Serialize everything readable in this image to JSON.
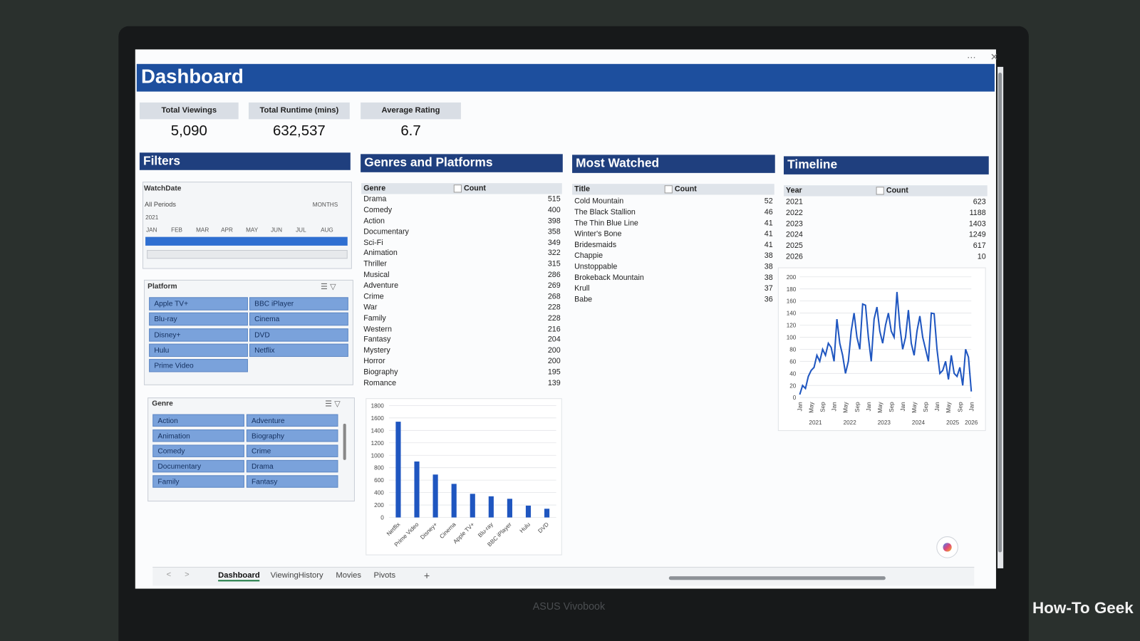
{
  "header": {
    "title": "Dashboard"
  },
  "kpis": [
    {
      "label": "Total Viewings",
      "value": "5,090"
    },
    {
      "label": "Total Runtime (mins)",
      "value": "632,537"
    },
    {
      "label": "Average Rating",
      "value": "6.7"
    }
  ],
  "filters": {
    "title": "Filters",
    "watchdate": {
      "title": "WatchDate",
      "period": "All Periods",
      "level": "MONTHS",
      "year": "2021",
      "months": [
        "JAN",
        "FEB",
        "MAR",
        "APR",
        "MAY",
        "JUN",
        "JUL",
        "AUG"
      ]
    },
    "platform": {
      "title": "Platform",
      "items": [
        "Apple TV+",
        "BBC iPlayer",
        "Blu-ray",
        "Cinema",
        "Disney+",
        "DVD",
        "Hulu",
        "Netflix",
        "Prime Video"
      ]
    },
    "genre": {
      "title": "Genre",
      "items": [
        "Action",
        "Adventure",
        "Animation",
        "Biography",
        "Comedy",
        "Crime",
        "Documentary",
        "Drama",
        "Family",
        "Fantasy"
      ]
    }
  },
  "genres": {
    "title": "Genres and Platforms",
    "columns": [
      "Genre",
      "Count"
    ],
    "rows": [
      [
        "Drama",
        515
      ],
      [
        "Comedy",
        400
      ],
      [
        "Action",
        398
      ],
      [
        "Documentary",
        358
      ],
      [
        "Sci-Fi",
        349
      ],
      [
        "Animation",
        322
      ],
      [
        "Thriller",
        315
      ],
      [
        "Musical",
        286
      ],
      [
        "Adventure",
        269
      ],
      [
        "Crime",
        268
      ],
      [
        "War",
        228
      ],
      [
        "Family",
        228
      ],
      [
        "Western",
        216
      ],
      [
        "Fantasy",
        204
      ],
      [
        "Mystery",
        200
      ],
      [
        "Horror",
        200
      ],
      [
        "Biography",
        195
      ],
      [
        "Romance",
        139
      ]
    ]
  },
  "most_watched": {
    "title": "Most Watched",
    "columns": [
      "Title",
      "Count"
    ],
    "rows": [
      [
        "Cold Mountain",
        52
      ],
      [
        "The Black Stallion",
        46
      ],
      [
        "The Thin Blue Line",
        41
      ],
      [
        "Winter's Bone",
        41
      ],
      [
        "Bridesmaids",
        41
      ],
      [
        "Chappie",
        38
      ],
      [
        "Unstoppable",
        38
      ],
      [
        "Brokeback Mountain",
        38
      ],
      [
        "Krull",
        37
      ],
      [
        "Babe",
        36
      ]
    ]
  },
  "timeline": {
    "title": "Timeline",
    "columns": [
      "Year",
      "Count"
    ],
    "rows": [
      [
        "2021",
        623
      ],
      [
        "2022",
        1188
      ],
      [
        "2023",
        1403
      ],
      [
        "2024",
        1249
      ],
      [
        "2025",
        617
      ],
      [
        "2026",
        10
      ]
    ]
  },
  "chart_data": [
    {
      "type": "bar",
      "categories": [
        "Netflix",
        "Prime Video",
        "Disney+",
        "Cinema",
        "Apple TV+",
        "Blu-ray",
        "BBC iPlayer",
        "Hulu",
        "DVD"
      ],
      "values": [
        1540,
        900,
        690,
        540,
        380,
        340,
        300,
        190,
        140
      ],
      "color": "#1f56c0",
      "ylim": [
        0,
        1800
      ],
      "yticks": [
        0,
        200,
        400,
        600,
        800,
        1000,
        1200,
        1400,
        1600,
        1800
      ],
      "grid": true
    },
    {
      "type": "line",
      "categories": [
        "Jan",
        null,
        null,
        null,
        "May",
        null,
        null,
        null,
        "Sep",
        null,
        null,
        null,
        "Jan",
        null,
        null,
        null,
        "May",
        null,
        null,
        null,
        "Sep",
        null,
        null,
        null,
        "Jan",
        null,
        null,
        null,
        "May",
        null,
        null,
        null,
        "Sep",
        null,
        null,
        null,
        "Jan",
        null,
        null,
        null,
        "May",
        null,
        null,
        null,
        "Sep",
        null,
        null,
        null,
        "Jan",
        null,
        null,
        null,
        "May",
        null,
        null,
        null,
        "Sep",
        null,
        null,
        null,
        "Jan"
      ],
      "x_groups": [
        "2021",
        "2022",
        "2023",
        "2024",
        "2025",
        "2026"
      ],
      "values": [
        5,
        20,
        15,
        35,
        45,
        50,
        70,
        60,
        80,
        70,
        90,
        83,
        60,
        130,
        90,
        70,
        40,
        60,
        110,
        140,
        100,
        80,
        155,
        153,
        100,
        60,
        130,
        150,
        110,
        90,
        120,
        140,
        110,
        100,
        175,
        118,
        80,
        100,
        145,
        90,
        70,
        110,
        135,
        100,
        80,
        60,
        140,
        139,
        80,
        40,
        45,
        60,
        30,
        70,
        40,
        35,
        50,
        20,
        80,
        67,
        10
      ],
      "color": "#1f56c0",
      "ylim": [
        0,
        200
      ],
      "yticks": [
        0,
        20,
        40,
        60,
        80,
        100,
        120,
        140,
        160,
        180,
        200
      ],
      "grid": true
    }
  ],
  "sheet_tabs": [
    "Dashboard",
    "ViewingHistory",
    "Movies",
    "Pivots"
  ],
  "device": {
    "brand": "ASUS Vivobook"
  },
  "watermark": "How-To Geek"
}
